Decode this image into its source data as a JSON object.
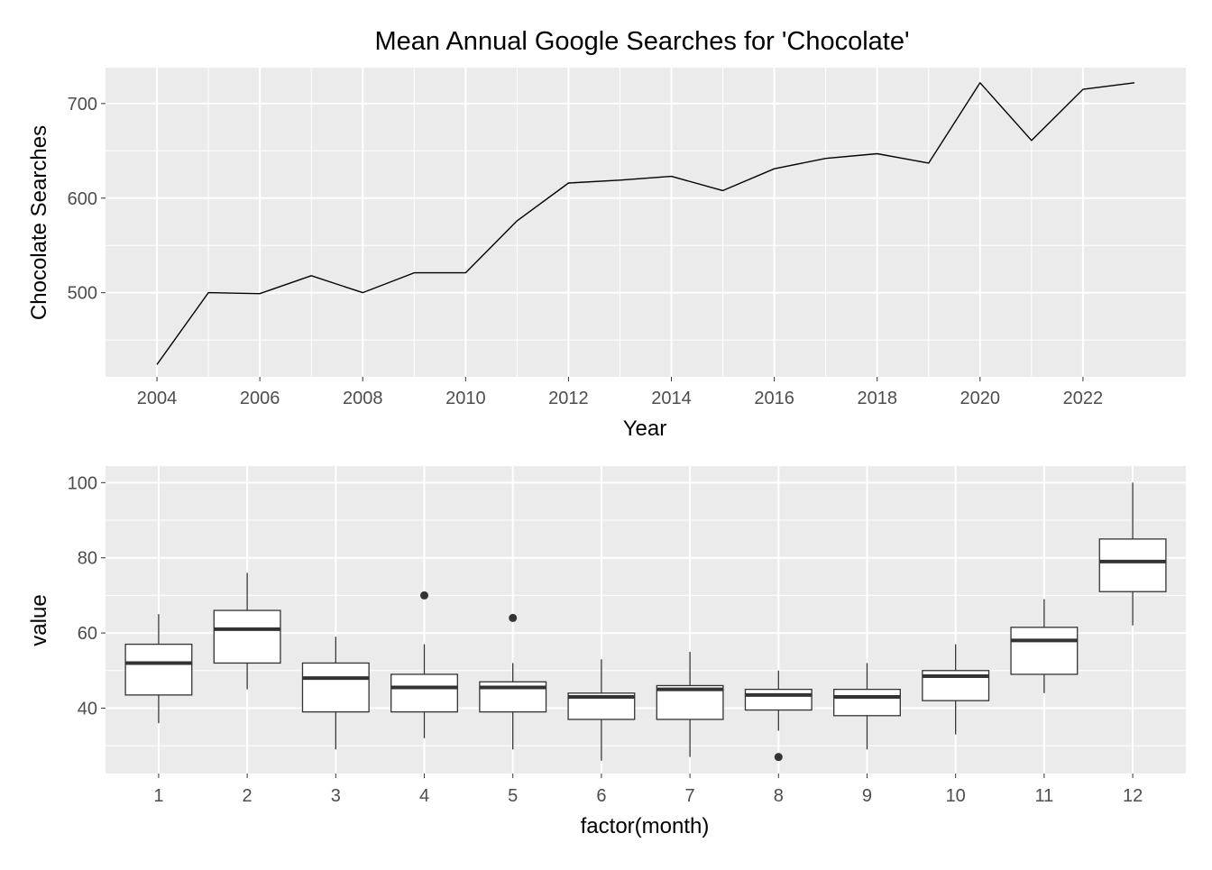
{
  "chart_data": [
    {
      "type": "line",
      "title": "Mean Annual Google Searches for 'Chocolate'",
      "xlabel": "Year",
      "ylabel": "Chocolate Searches",
      "xlim": [
        2003,
        2024
      ],
      "ylim": [
        411,
        738
      ],
      "grid": true,
      "x_ticks": [
        "2004",
        "2006",
        "2008",
        "2010",
        "2012",
        "2014",
        "2016",
        "2018",
        "2020",
        "2022"
      ],
      "y_ticks": [
        "500",
        "600",
        "700"
      ],
      "x": [
        2004,
        2005,
        2006,
        2007,
        2008,
        2009,
        2010,
        2011,
        2012,
        2013,
        2014,
        2015,
        2016,
        2017,
        2018,
        2019,
        2020,
        2021,
        2022,
        2023
      ],
      "y": [
        424,
        500,
        499,
        518,
        500,
        521,
        521,
        576,
        616,
        619,
        623,
        608,
        631,
        642,
        647,
        637,
        722,
        661,
        715,
        722
      ],
      "line_color": "#000000"
    },
    {
      "type": "box",
      "title": "",
      "xlabel": "factor(month)",
      "ylabel": "value",
      "ylim": [
        22.6,
        104.4
      ],
      "grid": true,
      "categories": [
        "1",
        "2",
        "3",
        "4",
        "5",
        "6",
        "7",
        "8",
        "9",
        "10",
        "11",
        "12"
      ],
      "y_ticks": [
        "40",
        "60",
        "80",
        "100"
      ],
      "boxes": [
        {
          "min": 36,
          "q1": 43.5,
          "median": 52,
          "q3": 57,
          "max": 65,
          "outliers": []
        },
        {
          "min": 45,
          "q1": 52,
          "median": 61,
          "q3": 66,
          "max": 76,
          "outliers": []
        },
        {
          "min": 29,
          "q1": 39,
          "median": 48,
          "q3": 52,
          "max": 59,
          "outliers": []
        },
        {
          "min": 32,
          "q1": 39,
          "median": 45.5,
          "q3": 49,
          "max": 57,
          "outliers": [
            70
          ]
        },
        {
          "min": 29,
          "q1": 39,
          "median": 45.5,
          "q3": 47,
          "max": 52,
          "outliers": [
            64
          ]
        },
        {
          "min": 26,
          "q1": 37,
          "median": 43,
          "q3": 44,
          "max": 53,
          "outliers": []
        },
        {
          "min": 27,
          "q1": 37,
          "median": 45,
          "q3": 46,
          "max": 55,
          "outliers": []
        },
        {
          "min": 34,
          "q1": 39.5,
          "median": 43.5,
          "q3": 45,
          "max": 50,
          "outliers": [
            27
          ]
        },
        {
          "min": 29,
          "q1": 38,
          "median": 43,
          "q3": 45,
          "max": 52,
          "outliers": []
        },
        {
          "min": 33,
          "q1": 42,
          "median": 48.5,
          "q3": 50,
          "max": 57,
          "outliers": []
        },
        {
          "min": 44,
          "q1": 49,
          "median": 58,
          "q3": 61.5,
          "max": 69,
          "outliers": []
        },
        {
          "min": 62,
          "q1": 71,
          "median": 79,
          "q3": 85,
          "max": 100,
          "outliers": []
        }
      ],
      "box_fill": "#ffffff",
      "box_stroke": "#333333"
    }
  ],
  "colors": {
    "panel_background": "#ebebeb",
    "grid": "#ffffff",
    "tick_text": "#4d4d4d"
  }
}
